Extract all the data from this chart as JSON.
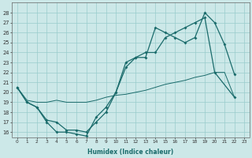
{
  "xlabel": "Humidex (Indice chaleur)",
  "line1_x": [
    0,
    1,
    2,
    3,
    4,
    5,
    6,
    7,
    8,
    9,
    10,
    11,
    12,
    13,
    14,
    15,
    16,
    17,
    18,
    19,
    20,
    21,
    22
  ],
  "line1_y": [
    20.5,
    19.0,
    18.5,
    17.0,
    16.0,
    16.0,
    15.8,
    15.6,
    17.5,
    18.5,
    20.0,
    23.0,
    23.5,
    23.5,
    26.5,
    26.0,
    25.5,
    25.0,
    25.5,
    28.0,
    27.0,
    24.8,
    21.8
  ],
  "line2_x": [
    0,
    1,
    2,
    3,
    4,
    5,
    6,
    7,
    8,
    9,
    10,
    11,
    12,
    13,
    14,
    15,
    16,
    17,
    18,
    19,
    20,
    22
  ],
  "line2_y": [
    20.5,
    19.0,
    18.5,
    17.2,
    17.0,
    16.2,
    16.2,
    16.0,
    17.0,
    18.0,
    20.0,
    22.5,
    23.5,
    24.0,
    24.0,
    25.5,
    26.0,
    26.5,
    27.0,
    27.5,
    22.0,
    19.5
  ],
  "line3_x": [
    0,
    1,
    2,
    3,
    4,
    5,
    6,
    7,
    8,
    9,
    10,
    11,
    12,
    13,
    14,
    15,
    16,
    17,
    18,
    19,
    20,
    21,
    22
  ],
  "line3_y": [
    20.5,
    19.2,
    19.0,
    19.0,
    19.2,
    19.0,
    19.0,
    19.0,
    19.2,
    19.5,
    19.7,
    19.8,
    20.0,
    20.2,
    20.5,
    20.8,
    21.0,
    21.2,
    21.5,
    21.7,
    22.0,
    22.0,
    19.5
  ],
  "xlim": [
    -0.5,
    23.5
  ],
  "ylim": [
    15.5,
    29.0
  ],
  "yticks": [
    16,
    17,
    18,
    19,
    20,
    21,
    22,
    23,
    24,
    25,
    26,
    27,
    28
  ],
  "xticks": [
    0,
    1,
    2,
    3,
    4,
    5,
    6,
    7,
    8,
    9,
    10,
    11,
    12,
    13,
    14,
    15,
    16,
    17,
    18,
    19,
    20,
    21,
    22,
    23
  ],
  "xtick_labels": [
    "0",
    "1",
    "2",
    "3",
    "4",
    "5",
    "6",
    "7",
    "8",
    "9",
    "10",
    "11",
    "12",
    "13",
    "14",
    "15",
    "16",
    "17",
    "18",
    "19",
    "20",
    "21",
    "22",
    "23"
  ],
  "line_color": "#1a6b6b",
  "bg_color": "#cce8e8",
  "grid_color": "#99cccc"
}
